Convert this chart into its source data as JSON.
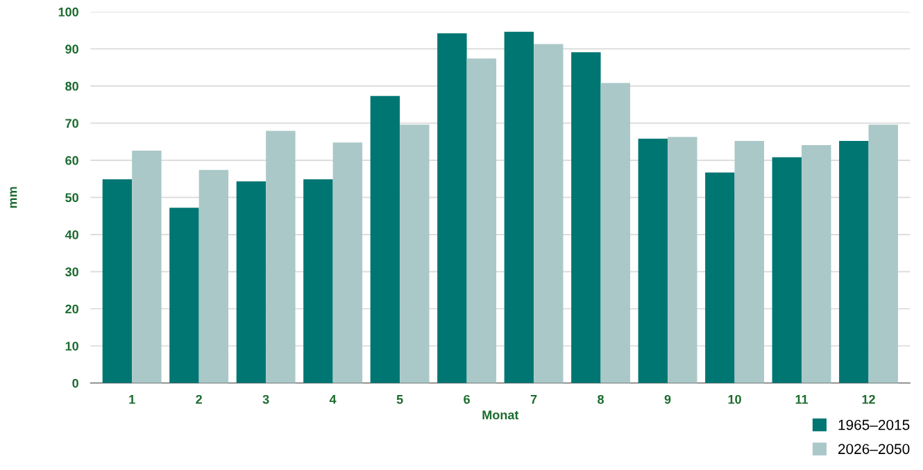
{
  "chart_data": {
    "type": "bar",
    "xlabel": "Monat",
    "ylabel": "mm",
    "categories": [
      "1",
      "2",
      "3",
      "4",
      "5",
      "6",
      "7",
      "8",
      "9",
      "10",
      "11",
      "12"
    ],
    "series": [
      {
        "name": "1965–2015",
        "color": "#007672",
        "values": [
          54.9,
          47.2,
          54.3,
          54.9,
          77.3,
          94.2,
          94.6,
          89.1,
          65.8,
          56.7,
          60.8,
          65.2
        ]
      },
      {
        "name": "2026–2050",
        "color": "#abc8c8",
        "values": [
          62.6,
          57.4,
          67.9,
          64.8,
          69.6,
          87.4,
          91.3,
          80.8,
          66.3,
          65.2,
          64.1,
          69.6
        ]
      }
    ],
    "ylim": [
      0,
      100
    ],
    "yticks": [
      0,
      10,
      20,
      30,
      40,
      50,
      60,
      70,
      80,
      90,
      100
    ],
    "grid": "y",
    "legend": "bottom right"
  }
}
